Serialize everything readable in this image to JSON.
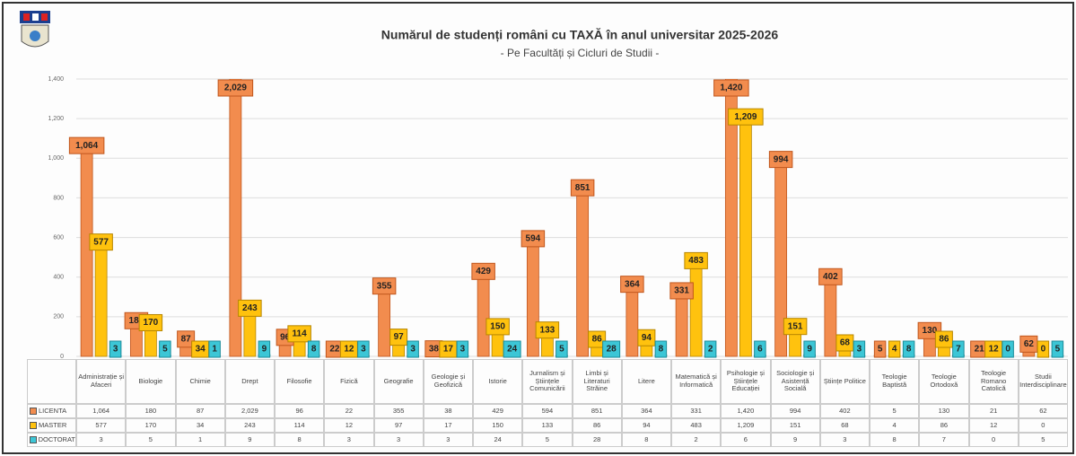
{
  "chart_data": {
    "type": "bar",
    "title": "Numărul de studenți români cu TAXĂ în anul universitar 2025-2026",
    "subtitle": "- Pe Facultăți și Cicluri de Studii -",
    "categories": [
      "Administrație și Afaceri",
      "Biologie",
      "Chimie",
      "Drept",
      "Filosofie",
      "Fizică",
      "Geografie",
      "Geologie și Geofizică",
      "Istorie",
      "Jurnalism și Științele Comunicării",
      "Limbi și Literaturi Străine",
      "Litere",
      "Matematică și Informatică",
      "Psihologie și Științele Educației",
      "Sociologie și Asistență Socială",
      "Științe Politice",
      "Teologie Baptistă",
      "Teologie Ortodoxă",
      "Teologie Romano Catolică",
      "Studii Interdisciplinare"
    ],
    "series": [
      {
        "name": "LICENTA",
        "color": "#f28c4e",
        "border": "#c0561d",
        "values": [
          1064,
          180,
          87,
          2029,
          96,
          22,
          355,
          38,
          429,
          594,
          851,
          364,
          331,
          1420,
          994,
          402,
          5,
          130,
          21,
          62
        ],
        "value_labels": [
          "1,064",
          "180",
          "87",
          "2,029",
          "96",
          "22",
          "355",
          "38",
          "429",
          "594",
          "851",
          "364",
          "331",
          "1,420",
          "994",
          "402",
          "5",
          "130",
          "21",
          "62"
        ]
      },
      {
        "name": "MASTER",
        "color": "#ffc20e",
        "border": "#b78600",
        "values": [
          577,
          170,
          34,
          243,
          114,
          12,
          97,
          17,
          150,
          133,
          86,
          94,
          483,
          1209,
          151,
          68,
          4,
          86,
          12,
          0
        ],
        "value_labels": [
          "577",
          "170",
          "34",
          "243",
          "114",
          "12",
          "97",
          "17",
          "150",
          "133",
          "86",
          "94",
          "483",
          "1,209",
          "151",
          "68",
          "4",
          "86",
          "12",
          "0"
        ]
      },
      {
        "name": "DOCTORAT",
        "color": "#3cc6d6",
        "border": "#1d8c99",
        "values": [
          3,
          5,
          1,
          9,
          8,
          3,
          3,
          3,
          24,
          5,
          28,
          8,
          2,
          6,
          9,
          3,
          8,
          7,
          0,
          5
        ],
        "value_labels": [
          "3",
          "5",
          "1",
          "9",
          "8",
          "3",
          "3",
          "3",
          "24",
          "5",
          "28",
          "8",
          "2",
          "6",
          "9",
          "3",
          "8",
          "7",
          "0",
          "5"
        ]
      }
    ],
    "ylim": [
      0,
      1400
    ],
    "yticks": [
      0,
      200,
      400,
      600,
      800,
      {
        "value": 1000,
        "label": "1,000"
      },
      {
        "value": 1200,
        "label": "1,200"
      },
      {
        "value": 1400,
        "label": "1,400"
      }
    ],
    "grid": true
  }
}
